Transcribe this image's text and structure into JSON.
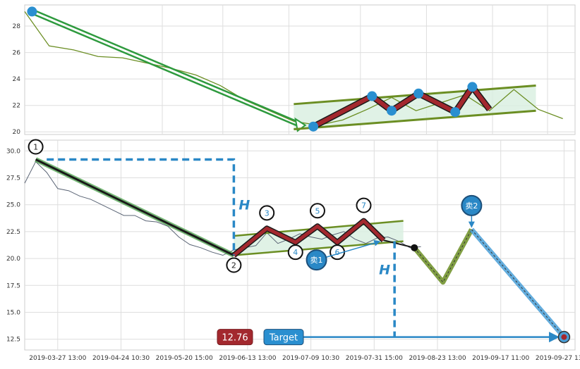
{
  "chart_data": [
    {
      "type": "line",
      "yticks": [
        "28",
        "26",
        "24",
        "22",
        "20"
      ],
      "ylim": [
        19.8,
        29.6
      ],
      "grid": true,
      "series": [
        {
          "role": "price",
          "color": "#6b8e23",
          "x": [
            0,
            1,
            2,
            3,
            4,
            5,
            6,
            7,
            8,
            9,
            10,
            11,
            12,
            13,
            14,
            15,
            16,
            17,
            18,
            19,
            20,
            21,
            22
          ],
          "values": [
            29.1,
            26.5,
            26.2,
            25.7,
            25.6,
            25.2,
            24.8,
            24.3,
            23.5,
            22.4,
            21.6,
            20.8,
            20.5,
            20.9,
            21.7,
            22.6,
            21.6,
            22.2,
            22.8,
            21.6,
            23.2,
            21.7,
            21.0
          ]
        },
        {
          "role": "trend-down-arrow",
          "color": "#2e9a3e",
          "points": [
            [
              0.3,
              29.1
            ],
            [
              11.3,
              20.5
            ]
          ]
        },
        {
          "role": "channel-upper",
          "color": "#6b8e23",
          "points": [
            [
              11.0,
              22.1
            ],
            [
              20.9,
              23.5
            ]
          ]
        },
        {
          "role": "channel-lower",
          "color": "#6b8e23",
          "points": [
            [
              11.0,
              20.2
            ],
            [
              20.9,
              21.6
            ]
          ]
        },
        {
          "role": "zigzag",
          "color": "#a3282e",
          "points": [
            [
              11.8,
              20.4
            ],
            [
              14.2,
              22.7
            ],
            [
              15.0,
              21.6
            ],
            [
              16.1,
              22.9
            ],
            [
              17.6,
              21.5
            ],
            [
              18.3,
              23.4
            ],
            [
              19.0,
              21.7
            ]
          ]
        }
      ],
      "markers": [
        [
          0.3,
          29.1
        ],
        [
          11.8,
          20.4
        ],
        [
          14.2,
          22.7
        ],
        [
          15.0,
          21.6
        ],
        [
          16.1,
          22.9
        ],
        [
          17.6,
          21.5
        ],
        [
          18.3,
          23.4
        ]
      ]
    },
    {
      "type": "line",
      "x_ticks": [
        "2019-03-27 13:00",
        "2019-04-24 10:30",
        "2019-05-20 15:00",
        "2019-06-13 13:00",
        "2019-07-09 10:30",
        "2019-07-31 15:00",
        "2019-08-23 13:00",
        "2019-09-17 11:00",
        "2019-09-27 13:00"
      ],
      "yticks": [
        "30.0",
        "27.5",
        "25.0",
        "22.5",
        "20.0",
        "17.5",
        "15.0",
        "12.5"
      ],
      "ylim": [
        11.5,
        31.0
      ],
      "grid": true,
      "price_series": {
        "color": "#5a6475",
        "x": [
          0,
          0.5,
          1,
          1.5,
          2,
          2.5,
          3,
          3.5,
          4,
          4.5,
          5,
          5.5,
          6,
          6.5,
          7,
          7.5,
          8,
          8.5,
          9,
          9.5,
          10,
          10.5,
          11,
          11.5,
          12,
          12.5,
          13,
          13.5,
          14,
          14.5,
          15,
          15.5,
          16,
          16.5,
          17,
          17.5,
          18
        ],
        "values": [
          27.0,
          29.0,
          28.0,
          26.5,
          26.3,
          25.8,
          25.5,
          25.0,
          24.5,
          24.0,
          24.0,
          23.5,
          23.4,
          23.0,
          22.0,
          21.3,
          21.0,
          20.6,
          20.3,
          20.8,
          21.0,
          21.2,
          22.4,
          21.4,
          21.8,
          22.3,
          22.0,
          21.8,
          22.2,
          22.5,
          21.8,
          21.4,
          21.9,
          22.0,
          21.6,
          21.0,
          21.1
        ]
      },
      "downtrend": {
        "color": "#1a1a1a",
        "points": [
          [
            0.5,
            29.2
          ],
          [
            9.5,
            20.3
          ]
        ]
      },
      "channel_upper": {
        "color": "#6b8e23",
        "points": [
          [
            9.5,
            22.1
          ],
          [
            17.2,
            23.5
          ]
        ]
      },
      "channel_lower": {
        "color": "#6b8e23",
        "points": [
          [
            9.5,
            20.3
          ],
          [
            17.2,
            21.6
          ]
        ]
      },
      "zigzag": {
        "color": "#a3282e",
        "points": [
          [
            9.5,
            20.3
          ],
          [
            11.0,
            22.8
          ],
          [
            12.3,
            21.5
          ],
          [
            13.3,
            23.0
          ],
          [
            14.2,
            21.5
          ],
          [
            15.4,
            23.5
          ],
          [
            16.3,
            21.7
          ]
        ]
      },
      "projection_green": {
        "color": "#6b8e23",
        "points": [
          [
            17.7,
            21.0
          ],
          [
            19.0,
            17.8
          ],
          [
            20.3,
            22.7
          ]
        ]
      },
      "projection_blue": {
        "color": "#4a9fd8",
        "points": [
          [
            20.3,
            22.7
          ],
          [
            24.5,
            12.7
          ]
        ]
      },
      "h_projection": {
        "color": "#2a88c6",
        "label": "H",
        "top": 29.2,
        "bottom": 20.3,
        "left_x": 1.0,
        "right_x": 9.5,
        "drop_x": 16.8,
        "drop_top": 21.6,
        "drop_bottom": 12.7
      },
      "target_arrow": {
        "color": "#2a88c6",
        "from": [
          12.2,
          12.7
        ],
        "to": [
          24.2,
          12.7
        ]
      },
      "points": [
        {
          "label": "1",
          "x": 0.5,
          "y": 29.2
        },
        {
          "label": "2",
          "x": 9.5,
          "y": 20.3
        },
        {
          "label": "3",
          "x": 11.0,
          "y": 22.8
        },
        {
          "label": "4",
          "x": 12.3,
          "y": 21.5
        },
        {
          "label": "5",
          "x": 13.3,
          "y": 23.0
        },
        {
          "label": "6",
          "x": 14.2,
          "y": 21.5
        },
        {
          "label": "7",
          "x": 15.4,
          "y": 23.5
        }
      ],
      "sell_points": [
        {
          "label": "卖1",
          "x": 16.3,
          "y": 21.7
        },
        {
          "label": "卖2",
          "x": 20.3,
          "y": 22.7
        }
      ],
      "target": {
        "label": "Target",
        "value": "12.76",
        "x": 24.5,
        "y": 12.7
      }
    }
  ]
}
